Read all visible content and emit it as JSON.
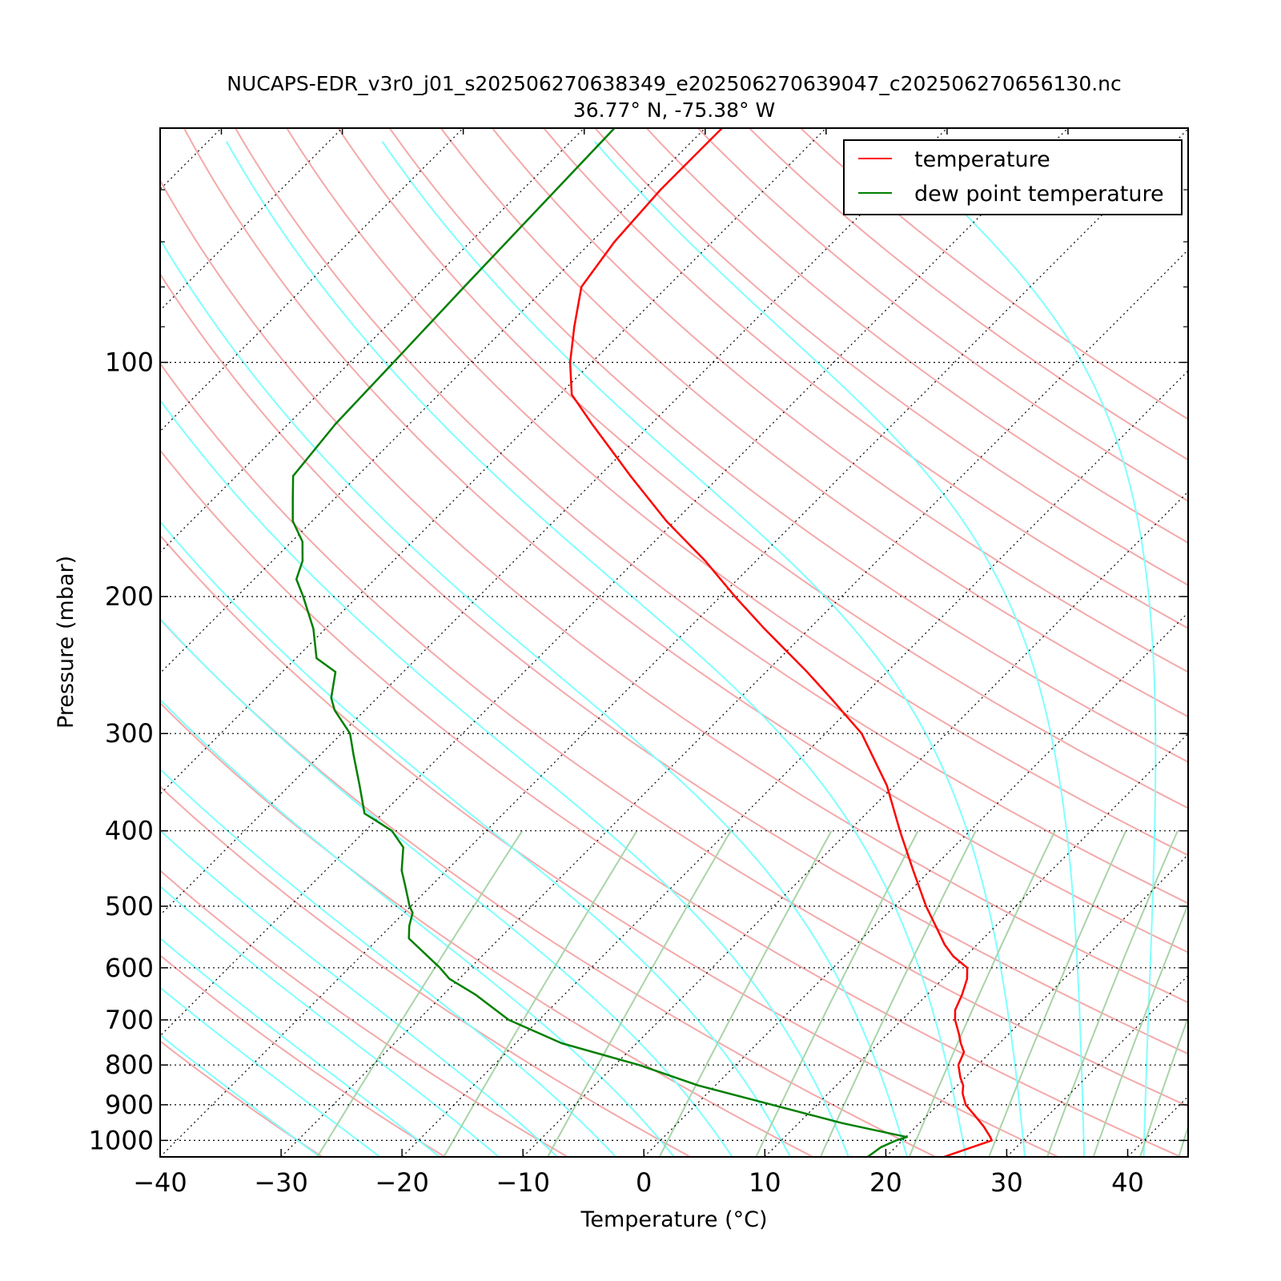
{
  "chart_data": {
    "type": "line",
    "subtype": "skew-t log-p",
    "title": "NUCAPS-EDR_v3r0_j01_s202506270638349_e202506270639047_c202506270656130.nc",
    "subtitle": "36.77° N, -75.38° W",
    "xlabel": "Temperature (°C)",
    "ylabel": "Pressure (mbar)",
    "xlim": [
      -40,
      45
    ],
    "ylim": [
      1050,
      50
    ],
    "y_scale": "log",
    "x_ticks": [
      -40,
      -30,
      -20,
      -10,
      0,
      10,
      20,
      30,
      40
    ],
    "x_tick_labels": [
      "−40",
      "−30",
      "−20",
      "−10",
      "0",
      "10",
      "20",
      "30",
      "40"
    ],
    "y_ticks": [
      100,
      200,
      300,
      400,
      500,
      600,
      700,
      800,
      900,
      1000
    ],
    "y_tick_labels": [
      "100",
      "200",
      "300",
      "400",
      "500",
      "600",
      "700",
      "800",
      "900",
      "1000"
    ],
    "isobar_grid": true,
    "isotherm_grid": true,
    "background_lines": {
      "dry_adiabats": {
        "color": "#f4a9a9"
      },
      "moist_adiabats": {
        "color": "#80ffff"
      },
      "mixing_ratio_lines": {
        "color": "#a9d4a9"
      }
    },
    "legend": {
      "placement": "top-right",
      "entries": [
        {
          "label": "temperature",
          "color": "#ff0000"
        },
        {
          "label": "dew point temperature",
          "color": "#007f00"
        }
      ]
    },
    "series": [
      {
        "name": "temperature",
        "color": "#ff0000",
        "pressure": [
          1050,
          1000,
          990,
          960,
          930,
          900,
          870,
          850,
          830,
          800,
          770,
          750,
          730,
          700,
          680,
          650,
          620,
          600,
          580,
          560,
          540,
          500,
          450,
          400,
          350,
          300,
          270,
          250,
          220,
          200,
          180,
          160,
          140,
          120,
          110,
          100,
          90,
          80,
          70,
          60,
          50
        ],
        "temperature": [
          24.8,
          27.4,
          27.0,
          25.6,
          24.0,
          22.3,
          21.1,
          20.5,
          19.6,
          18.4,
          17.8,
          16.8,
          15.9,
          14.4,
          13.6,
          12.9,
          12.0,
          11.1,
          9.0,
          7.3,
          5.8,
          2.6,
          -1.4,
          -5.8,
          -10.6,
          -17.0,
          -22.5,
          -26.6,
          -33.7,
          -38.8,
          -44.2,
          -50.7,
          -57.4,
          -64.9,
          -69.0,
          -71.8,
          -74.4,
          -77.1,
          -78.1,
          -78.6,
          -78.6
        ]
      },
      {
        "name": "dew point temperature",
        "color": "#007f00",
        "pressure": [
          1050,
          1020,
          1000,
          990,
          950,
          900,
          850,
          800,
          750,
          700,
          650,
          620,
          600,
          550,
          530,
          510,
          500,
          470,
          450,
          420,
          400,
          380,
          350,
          320,
          300,
          280,
          270,
          250,
          240,
          220,
          200,
          190,
          180,
          170,
          160,
          150,
          140,
          120,
          100,
          80,
          50
        ],
        "temperature": [
          18.5,
          18.8,
          19.5,
          20.1,
          13.6,
          6.3,
          -1.4,
          -8.0,
          -16.2,
          -22.5,
          -27.3,
          -30.8,
          -32.5,
          -37.5,
          -38.5,
          -39.3,
          -40.1,
          -42.2,
          -43.7,
          -45.5,
          -47.8,
          -51.5,
          -54.2,
          -57.2,
          -59.3,
          -62.5,
          -63.8,
          -65.6,
          -68.3,
          -71.0,
          -74.5,
          -76.5,
          -77.5,
          -79.1,
          -81.6,
          -83.4,
          -85.3,
          -86.1,
          -86.4,
          -86.8,
          -87.5
        ]
      }
    ]
  }
}
